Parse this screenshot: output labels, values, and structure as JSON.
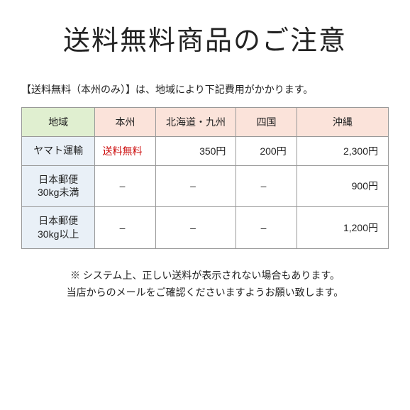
{
  "title": "送料無料商品のご注意",
  "intro": "【送料無料（本州のみ）】は、地域により下記費用がかかります。",
  "table": {
    "header": {
      "region_label": "地域",
      "areas": [
        "本州",
        "北海道・九州",
        "四国",
        "沖縄"
      ]
    },
    "rows": [
      {
        "carrier": "ヤマト運輸",
        "cells": [
          {
            "text": "送料無料",
            "align": "center",
            "red": true
          },
          {
            "text": "350円",
            "align": "right"
          },
          {
            "text": "200円",
            "align": "right"
          },
          {
            "text": "2,300円",
            "align": "right"
          }
        ]
      },
      {
        "carrier": "日本郵便\n30kg未満",
        "cells": [
          {
            "text": "–",
            "align": "center"
          },
          {
            "text": "–",
            "align": "center"
          },
          {
            "text": "–",
            "align": "center"
          },
          {
            "text": "900円",
            "align": "right"
          }
        ]
      },
      {
        "carrier": "日本郵便\n30kg以上",
        "cells": [
          {
            "text": "–",
            "align": "center"
          },
          {
            "text": "–",
            "align": "center"
          },
          {
            "text": "–",
            "align": "center"
          },
          {
            "text": "1,200円",
            "align": "right"
          }
        ]
      }
    ]
  },
  "notes": {
    "line1": "※ システム上、正しい送料が表示されない場合もあります。",
    "line2": "当店からのメールをご確認くださいますようお願い致します。"
  },
  "colors": {
    "green_header": "#e0efd0",
    "peach_header": "#fbe3da",
    "blue_rowhdr": "#e9f0f7",
    "border": "#999999",
    "red": "#cc0c0c",
    "text": "#222222",
    "background": "#ffffff"
  }
}
